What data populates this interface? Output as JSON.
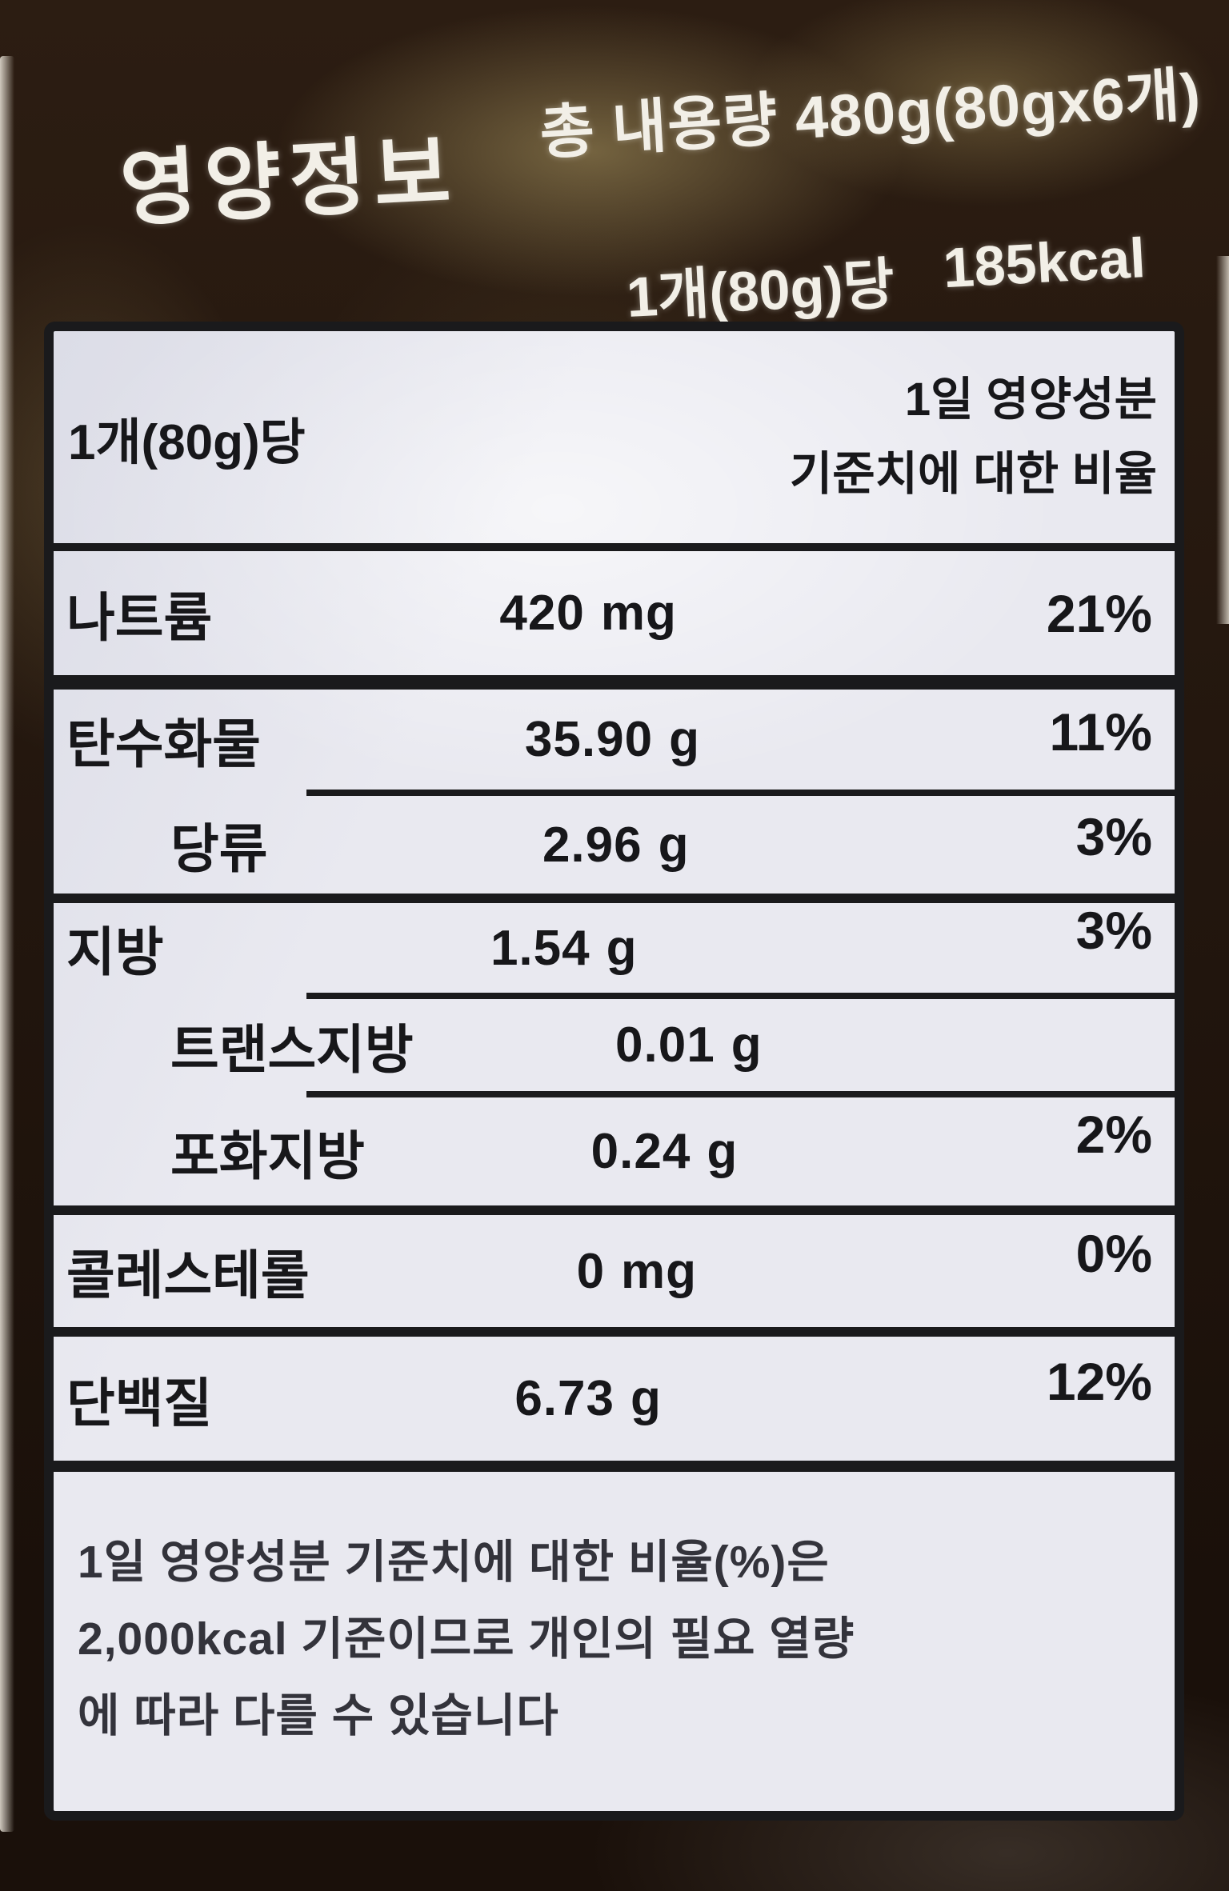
{
  "product": {
    "title": "영양정보",
    "total_content": "총 내용량 480g(80gx6개)",
    "serving_label": "1개(80g)당",
    "serving_kcal": "185kcal"
  },
  "table": {
    "header": {
      "serving": "1개(80g)당",
      "daily_value_line1": "1일 영양성분",
      "daily_value_line2": "기준치에 대한 비율"
    },
    "rows": [
      {
        "label": "나트륨",
        "value": "420",
        "unit": "mg",
        "percent": "21%"
      },
      {
        "label": "탄수화물",
        "value": "35.90",
        "unit": "g",
        "percent": "11%"
      },
      {
        "label": "당류",
        "value": "2.96",
        "unit": "g",
        "percent": "3%"
      },
      {
        "label": "지방",
        "value": "1.54",
        "unit": "g",
        "percent": "3%"
      },
      {
        "label": "트랜스지방",
        "value": "0.01",
        "unit": "g",
        "percent": ""
      },
      {
        "label": "포화지방",
        "value": "0.24",
        "unit": "g",
        "percent": "2%"
      },
      {
        "label": "콜레스테롤",
        "value": "0",
        "unit": "mg",
        "percent": "0%"
      },
      {
        "label": "단백질",
        "value": "6.73",
        "unit": "g",
        "percent": "12%"
      }
    ],
    "footnote_line1": "1일 영양성분 기준치에 대한 비율(%)은",
    "footnote_line2": "2,000kcal 기준이므로 개인의 필요 열량",
    "footnote_line3": "에 따라 다를 수 있습니다"
  },
  "colors": {
    "package_brown": "#2c1d12",
    "label_background": "#e9e9f0",
    "ink": "#1a1a1c",
    "package_print": "#f2efe7"
  }
}
